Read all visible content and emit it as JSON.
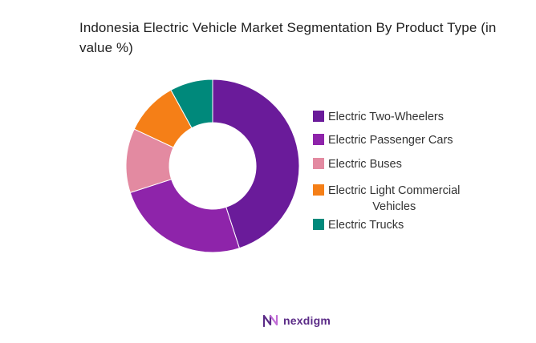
{
  "chart_data": {
    "type": "pie",
    "title": "Indonesia Electric Vehicle Market Segmentation By Product Type (in value %)",
    "donut": true,
    "legend_position": "right",
    "slices": [
      {
        "label": "Electric Two-Wheelers",
        "value": 45,
        "color": "#6a1b9a"
      },
      {
        "label": "Electric Passenger Cars",
        "value": 25,
        "color": "#8e24aa"
      },
      {
        "label": "Electric Buses",
        "value": 12,
        "color": "#e38aa1"
      },
      {
        "label": "Electric Light Commercial\nVehicles",
        "value": 10,
        "color": "#f57f17"
      },
      {
        "label": "Electric Trucks",
        "value": 8,
        "color": "#00897b"
      }
    ]
  },
  "logo": {
    "text": "nexdigm",
    "color": "#5b2b87"
  }
}
